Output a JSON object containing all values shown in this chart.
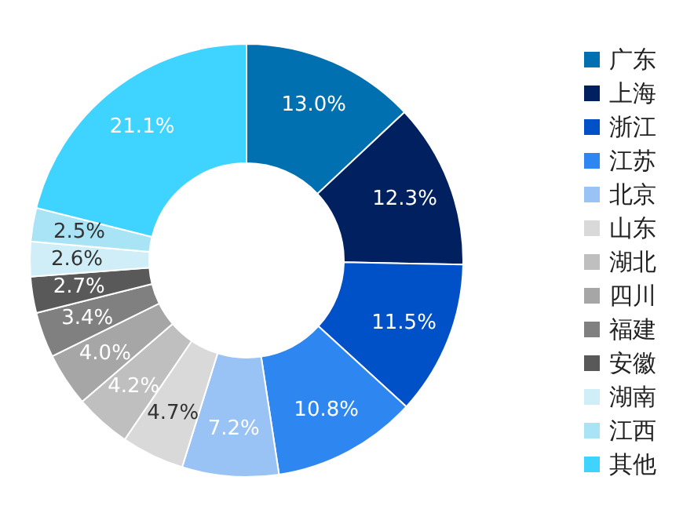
{
  "chart_data": {
    "type": "donut",
    "categories": [
      "广东",
      "上海",
      "浙江",
      "江苏",
      "北京",
      "山东",
      "湖北",
      "四川",
      "福建",
      "安徽",
      "湖南",
      "江西",
      "其他"
    ],
    "values": [
      13.0,
      12.3,
      11.5,
      10.8,
      7.2,
      4.7,
      4.2,
      4.0,
      3.4,
      2.7,
      2.6,
      2.5,
      21.1
    ],
    "value_labels": [
      "13.0%",
      "12.3%",
      "11.5%",
      "10.8%",
      "7.2%",
      "4.7%",
      "4.2%",
      "4.0%",
      "3.4%",
      "2.7%",
      "2.6%",
      "2.5%",
      "21.1%"
    ],
    "colors": [
      "#0070b0",
      "#002060",
      "#0050c8",
      "#2e86f0",
      "#99c2f5",
      "#d9d9d9",
      "#bfbfbf",
      "#a6a6a6",
      "#808080",
      "#595959",
      "#d0eef8",
      "#a8e4f6",
      "#3ed4ff"
    ],
    "legend": "right"
  }
}
